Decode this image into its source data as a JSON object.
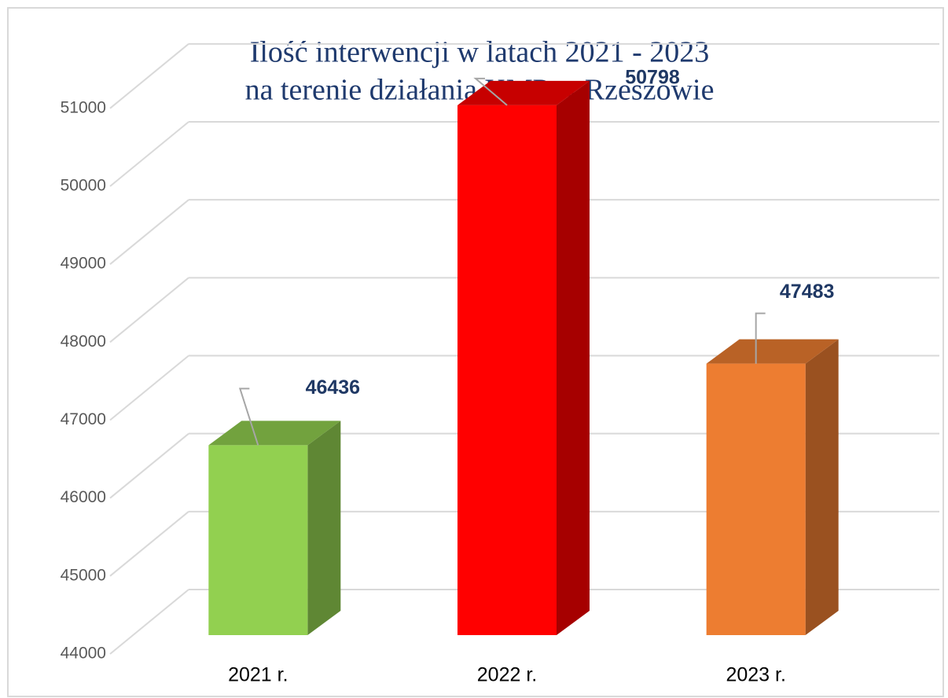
{
  "chart_data": {
    "type": "bar3d",
    "title": [
      "Ilość interwencji w latach 2021 - 2023",
      "na terenie działania KMP w Rzeszowie"
    ],
    "categories": [
      "2021 r.",
      "2022 r.",
      "2023 r."
    ],
    "values": [
      46436,
      50798,
      47483
    ],
    "colors": [
      "#92d050",
      "#ff0000",
      "#ed7d31"
    ],
    "ylim": [
      44000,
      51000
    ],
    "yticks": [
      44000,
      45000,
      46000,
      47000,
      48000,
      49000,
      50000,
      51000
    ],
    "grid": true
  }
}
